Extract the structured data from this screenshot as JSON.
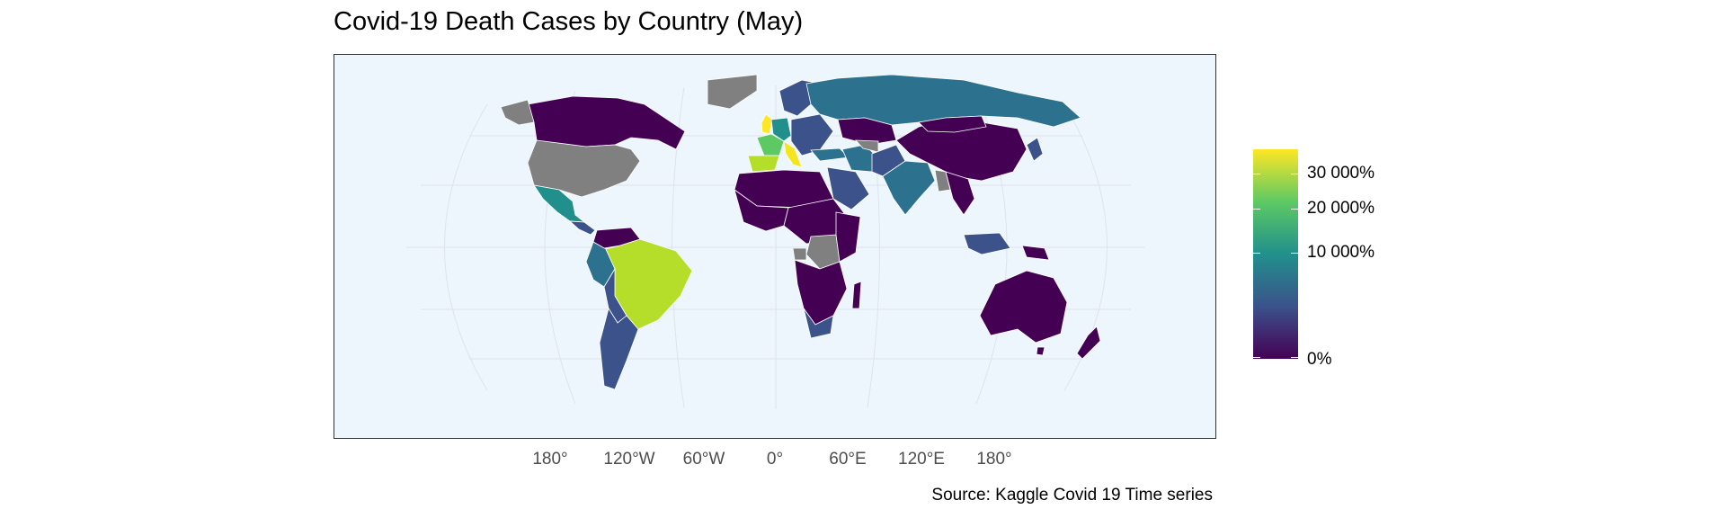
{
  "title": "Covid-19 Death Cases by Country (May)",
  "caption": "Source: Kaggle Covid 19 Time series",
  "x_axis_ticks": [
    "180°",
    "120°W",
    "60°W",
    "0°",
    "60°E",
    "120°E",
    "180°"
  ],
  "legend": {
    "labels": [
      "30 000%",
      "20 000%",
      "10 000%",
      "0%"
    ],
    "colorscale": [
      "#440154",
      "#3b528b",
      "#21908c",
      "#5dc963",
      "#fde725"
    ]
  },
  "colors": {
    "ocean": "#eef6fd",
    "no_data": "#808080",
    "graticule": "#dde3ea",
    "border": "#ffffff"
  },
  "chart_data": {
    "type": "choropleth",
    "title": "Covid-19 Death Cases by Country (May)",
    "caption": "Source: Kaggle Covid 19 Time series",
    "projection": "Robinson",
    "x_ticks": [
      "180°",
      "120°W",
      "60°W",
      "0°",
      "60°E",
      "120°E",
      "180°"
    ],
    "legend_labels": [
      "30 000%",
      "20 000%",
      "10 000%",
      "0%"
    ],
    "legend_values": [
      30000,
      20000,
      10000,
      0
    ],
    "no_data_regions": [
      "United States",
      "Alaska",
      "Greenland",
      "Democratic Republic of the Congo",
      "Myanmar",
      "Turkmenistan",
      "Gabon"
    ],
    "regions": [
      {
        "name": "United Kingdom",
        "value": 33000
      },
      {
        "name": "Italy",
        "value": 31000
      },
      {
        "name": "Spain",
        "value": 26000
      },
      {
        "name": "France",
        "value": 26000
      },
      {
        "name": "Brazil",
        "value": 24000
      },
      {
        "name": "Mexico",
        "value": 10500
      },
      {
        "name": "Iran",
        "value": 8500
      },
      {
        "name": "Russia",
        "value": 6000
      },
      {
        "name": "India",
        "value": 5500
      },
      {
        "name": "Germany",
        "value": 8000
      },
      {
        "name": "Peru",
        "value": 5000
      },
      {
        "name": "Canada",
        "value": 1500
      },
      {
        "name": "Indonesia",
        "value": 2500
      },
      {
        "name": "China",
        "value": 800
      },
      {
        "name": "Australia",
        "value": 100
      }
    ]
  }
}
